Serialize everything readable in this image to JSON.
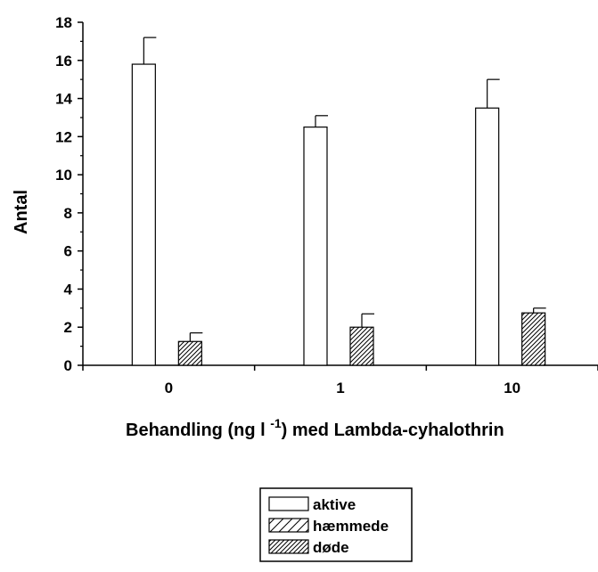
{
  "chart_data": {
    "type": "bar",
    "categories": [
      "0",
      "1",
      "10"
    ],
    "series": [
      {
        "name": "aktive",
        "pattern": "none",
        "values": [
          15.8,
          12.5,
          13.5
        ],
        "errors": [
          1.4,
          0.6,
          1.5
        ]
      },
      {
        "name": "hæmmede",
        "pattern": "sparse-hatch",
        "values": [
          0,
          0,
          0
        ],
        "errors": [
          0,
          0,
          0
        ]
      },
      {
        "name": "døde",
        "pattern": "dense-hatch",
        "values": [
          1.25,
          2.0,
          2.75
        ],
        "errors": [
          0.45,
          0.7,
          0.25
        ]
      }
    ],
    "ylabel": "Antal",
    "xlabel_parts": {
      "before": "Behandling (ng l ",
      "sup": "-1",
      "after": ") med Lambda-cyhalothrin"
    },
    "ylim": [
      0,
      18
    ],
    "yticks": [
      0,
      2,
      4,
      6,
      8,
      10,
      12,
      14,
      16,
      18
    ],
    "grid": false,
    "legend_position": "bottom-center"
  }
}
